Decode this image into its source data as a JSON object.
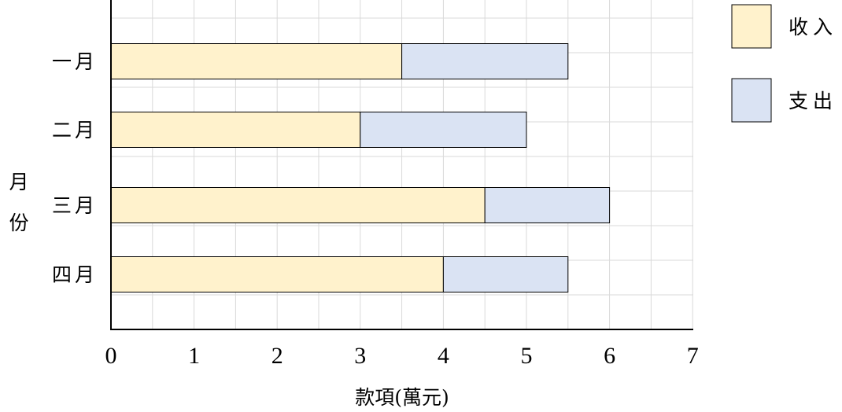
{
  "chart_data": {
    "type": "bar",
    "orientation": "horizontal",
    "stacked": true,
    "categories": [
      "一月",
      "二月",
      "三月",
      "四月"
    ],
    "series": [
      {
        "name": "收入",
        "values": [
          3.5,
          3,
          4.5,
          4
        ],
        "color": "#FFF2CC"
      },
      {
        "name": "支出",
        "values": [
          2,
          2,
          1.5,
          1.5
        ],
        "color": "#DAE3F3"
      }
    ],
    "xlabel": "款項(萬元)",
    "ylabel": "月份",
    "xlim": [
      0,
      7
    ],
    "xticks": [
      "0",
      "1",
      "2",
      "3",
      "4",
      "5",
      "6",
      "7"
    ],
    "grid": true,
    "legend_position": "top-right"
  }
}
